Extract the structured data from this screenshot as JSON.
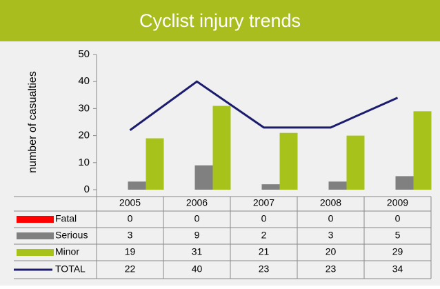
{
  "chart_data": {
    "type": "bar",
    "title": "Cyclist injury trends",
    "y_label": "number of casualties",
    "categories": [
      "2005",
      "2006",
      "2007",
      "2008",
      "2009"
    ],
    "series": [
      {
        "name": "Fatal",
        "color": "#ff0000",
        "type": "bar",
        "values": [
          0,
          0,
          0,
          0,
          0
        ]
      },
      {
        "name": "Serious",
        "color": "#808080",
        "type": "bar",
        "values": [
          3,
          9,
          2,
          3,
          5
        ]
      },
      {
        "name": "Minor",
        "color": "#a8c21c",
        "type": "bar",
        "values": [
          19,
          31,
          21,
          20,
          29
        ]
      },
      {
        "name": "TOTAL",
        "color": "#1c1c6e",
        "type": "line",
        "values": [
          22,
          40,
          23,
          23,
          34
        ]
      }
    ],
    "ylim": [
      0,
      50
    ],
    "yticks": [
      0,
      10,
      20,
      30,
      40,
      50
    ],
    "grid": false
  }
}
